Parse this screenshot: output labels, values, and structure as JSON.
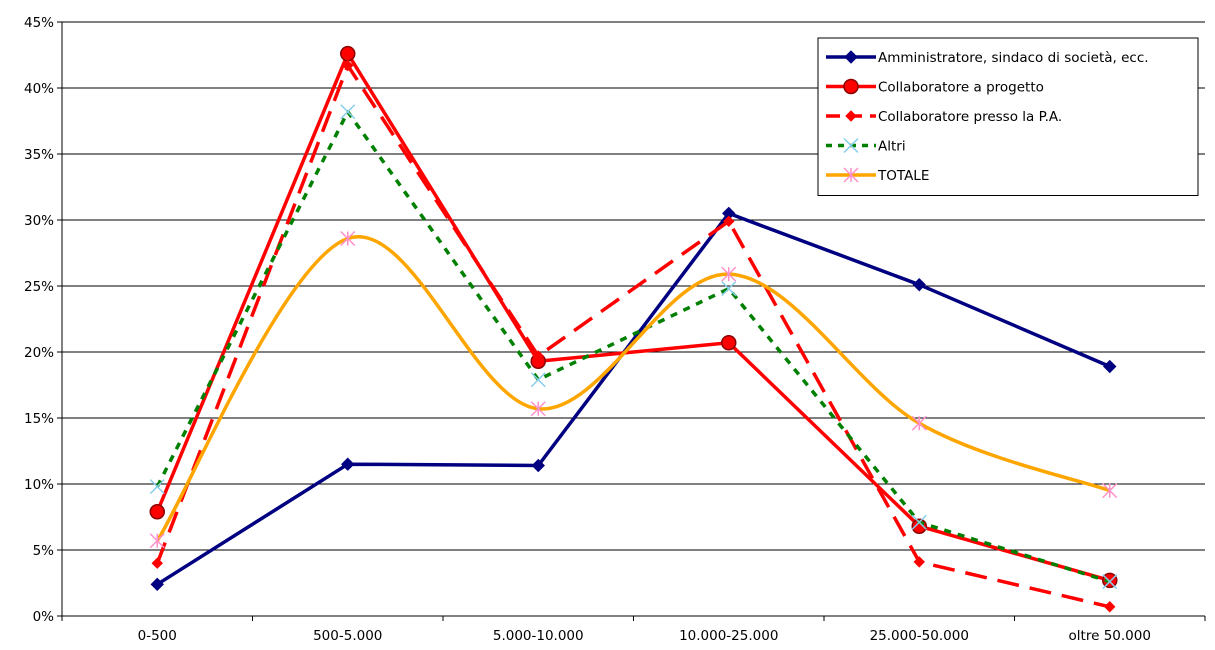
{
  "chart_data": {
    "type": "line",
    "title": "",
    "xlabel": "",
    "ylabel": "",
    "categories": [
      "0-500",
      "500-5.000",
      "5.000-10.000",
      "10.000-25.000",
      "25.000-50.000",
      "oltre 50.000"
    ],
    "ylim": [
      0,
      45
    ],
    "yticks": [
      "0%",
      "5%",
      "10%",
      "15%",
      "20%",
      "25%",
      "30%",
      "35%",
      "40%",
      "45%"
    ],
    "grid": true,
    "legend_position": "top-right",
    "series": [
      {
        "name": "Amministratore, sindaco di società, ecc.",
        "values": [
          2.4,
          11.5,
          11.4,
          30.5,
          25.1,
          18.9
        ],
        "color": "#000080",
        "dash": "solid",
        "marker": "diamond",
        "smooth": false
      },
      {
        "name": "Collaboratore a progetto",
        "values": [
          7.9,
          42.6,
          19.3,
          20.7,
          6.8,
          2.7
        ],
        "color": "#ff0000",
        "dash": "solid",
        "marker": "circle",
        "smooth": false
      },
      {
        "name": "Collaboratore presso la P.A.",
        "values": [
          4.0,
          41.7,
          19.7,
          29.9,
          4.1,
          0.7
        ],
        "color": "#ff0000",
        "dash": "long-dash",
        "marker": "diamond-small",
        "smooth": false
      },
      {
        "name": "Altri",
        "values": [
          9.8,
          38.2,
          17.9,
          24.8,
          7.1,
          2.6
        ],
        "color": "#008000",
        "dash": "short-dash",
        "marker": "x",
        "smooth": false
      },
      {
        "name": "TOTALE",
        "values": [
          5.7,
          28.6,
          15.7,
          25.9,
          14.6,
          9.5
        ],
        "color": "#ffa500",
        "dash": "solid",
        "marker": "star",
        "smooth": true
      }
    ]
  }
}
